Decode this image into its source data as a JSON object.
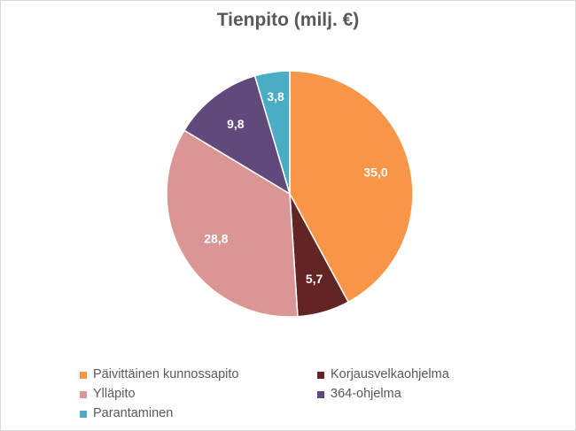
{
  "chart_data": {
    "type": "pie",
    "title": "Tienpito (milj. €)",
    "categories": [
      "Päivittäinen kunnossapito",
      "Korjausvelkaohjelma",
      "Ylläpito",
      "364-ohjelma",
      "Parantaminen"
    ],
    "values": [
      35.0,
      5.7,
      28.8,
      9.8,
      3.8
    ],
    "value_labels": [
      "35,0",
      "5,7",
      "28,8",
      "9,8",
      "3,8"
    ],
    "colors": [
      "#f79646",
      "#632523",
      "#d99694",
      "#604a7b",
      "#4bacc6"
    ],
    "start_angle": "12 o'clock",
    "direction": "clockwise",
    "legend_position": "bottom"
  }
}
